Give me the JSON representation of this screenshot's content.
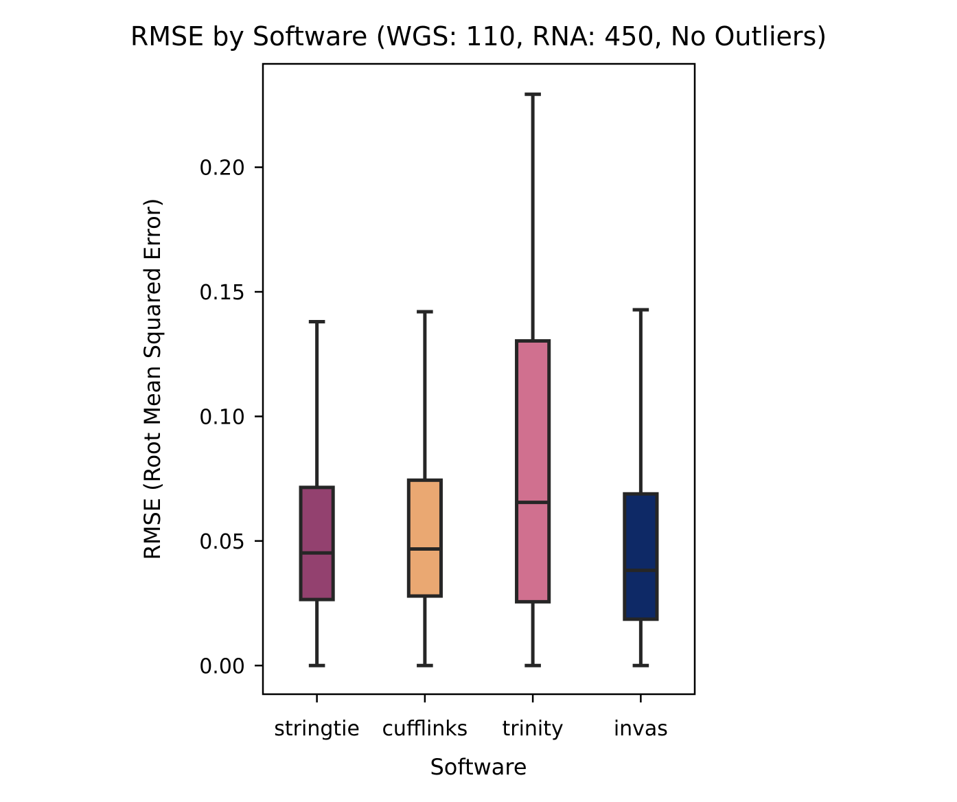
{
  "chart_data": {
    "type": "box",
    "title": "RMSE by Software (WGS: 110, RNA: 450, No Outliers)",
    "xlabel": "Software",
    "ylabel": "RMSE (Root Mean Squared Error)",
    "ylim": [
      -0.0115,
      0.2415
    ],
    "yticks": [
      "0.00",
      "0.05",
      "0.10",
      "0.15",
      "0.20"
    ],
    "ytick_values": [
      0,
      0.05,
      0.1,
      0.15,
      0.2
    ],
    "grid": false,
    "legend": "none",
    "categories": [
      "stringtie",
      "cufflinks",
      "trinity",
      "invas"
    ],
    "boxes": [
      {
        "category": "stringtie",
        "whisker_low": 0.0,
        "q1": 0.0265,
        "median": 0.0452,
        "q3": 0.0715,
        "whisker_high": 0.138,
        "color": "#93416f"
      },
      {
        "category": "cufflinks",
        "whisker_low": 0.0,
        "q1": 0.0279,
        "median": 0.0468,
        "q3": 0.0744,
        "whisker_high": 0.142,
        "color": "#eaa872"
      },
      {
        "category": "trinity",
        "whisker_low": 0.0,
        "q1": 0.0256,
        "median": 0.0655,
        "q3": 0.1303,
        "whisker_high": 0.2293,
        "color": "#d0708f"
      },
      {
        "category": "invas",
        "whisker_low": 0.0,
        "q1": 0.0186,
        "median": 0.0382,
        "q3": 0.0689,
        "whisker_high": 0.1428,
        "color": "#0e2966"
      }
    ]
  }
}
